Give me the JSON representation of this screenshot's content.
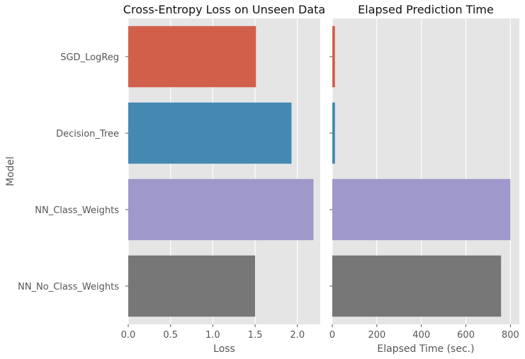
{
  "chart_data": [
    {
      "type": "bar",
      "orientation": "horizontal",
      "title": "Cross-Entropy Loss on Unseen Data",
      "xlabel": "Loss",
      "ylabel": "Model",
      "categories": [
        "SGD_LogReg",
        "Decision_Tree",
        "NN_Class_Weights",
        "NN_No_Class_Weights"
      ],
      "values": [
        1.51,
        1.93,
        2.19,
        1.5
      ],
      "xlim": [
        0,
        2.27
      ],
      "xticks": [
        0.0,
        0.5,
        1.0,
        1.5,
        2.0
      ],
      "xtick_labels": [
        "0.0",
        "0.5",
        "1.0",
        "1.5",
        "2.0"
      ],
      "colors": [
        "#d1604b",
        "#4489b2",
        "#9e98cb",
        "#777777"
      ],
      "grid": true
    },
    {
      "type": "bar",
      "orientation": "horizontal",
      "title": "Elapsed Prediction Time",
      "xlabel": "Elapsed Time (sec.)",
      "categories": [
        "SGD_LogReg",
        "Decision_Tree",
        "NN_Class_Weights",
        "NN_No_Class_Weights"
      ],
      "values": [
        12,
        12,
        800,
        758
      ],
      "xlim": [
        0,
        840
      ],
      "xticks": [
        0,
        200,
        400,
        600,
        800
      ],
      "xtick_labels": [
        "0",
        "200",
        "400",
        "600",
        "800"
      ],
      "colors": [
        "#d1604b",
        "#4489b2",
        "#9e98cb",
        "#777777"
      ],
      "grid": true
    }
  ]
}
